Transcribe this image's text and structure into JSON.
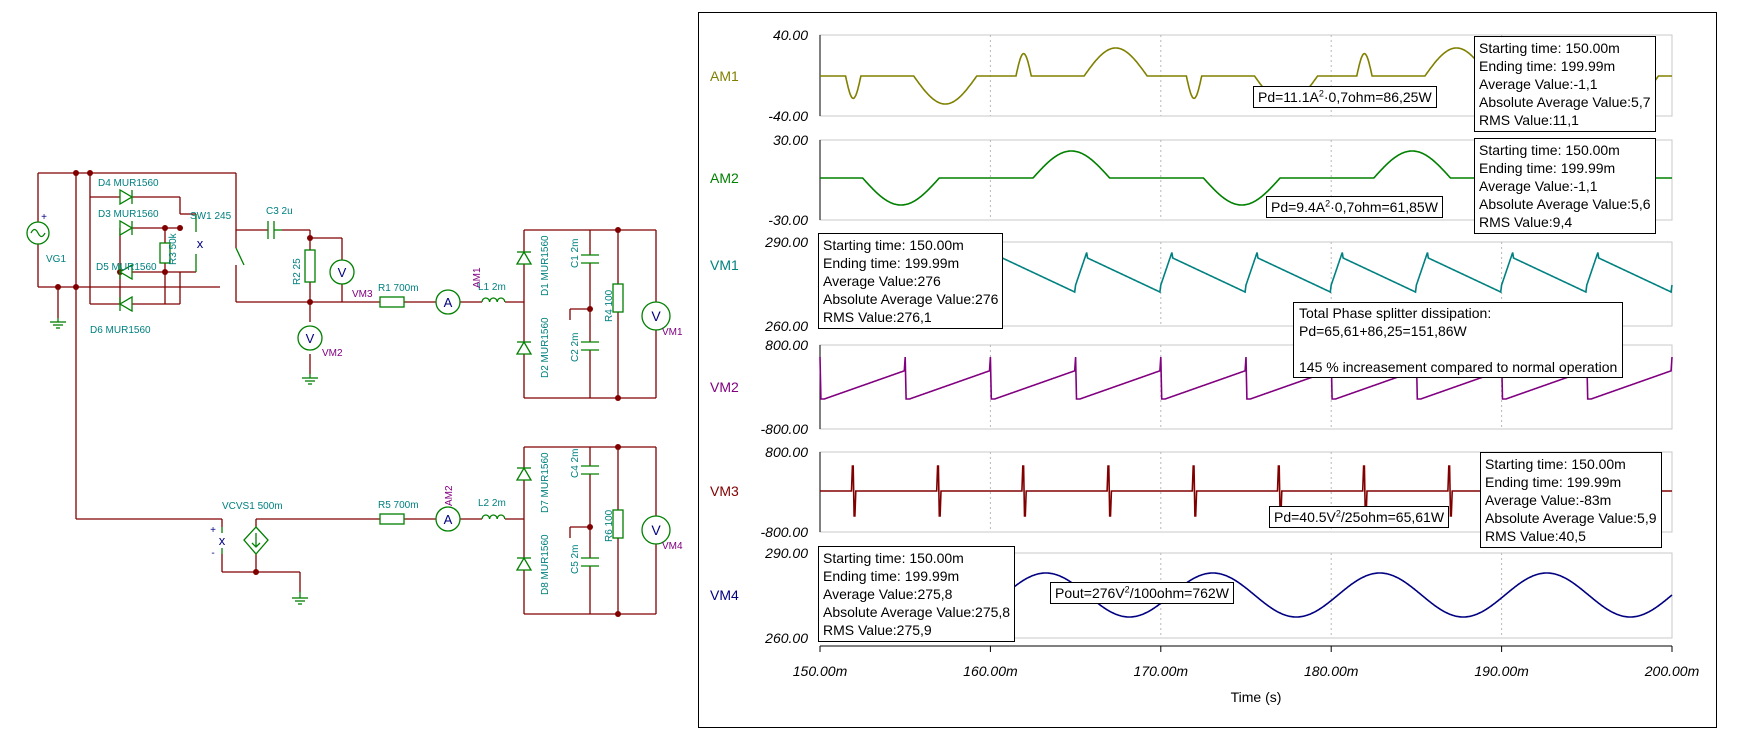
{
  "schematic": {
    "components": {
      "vg1": "VG1",
      "d4": "D4 MUR1560",
      "d3": "D3 MUR1560",
      "d5": "D5 MUR1560",
      "d6": "D6 MUR1560",
      "r3": "R3 50k",
      "sw1": "SW1 245",
      "c3": "C3 2u",
      "r2": "R2 25",
      "vm3": "VM3",
      "r1": "R1 700m",
      "am1": "AM1",
      "l1": "L1 2m",
      "d1": "D1 MUR1560",
      "d2": "D2 MUR1560",
      "c1": "C1 2m",
      "c2": "C2 2m",
      "r4": "R4 100",
      "vm1": "VM1",
      "vm2": "VM2",
      "vcvs1": "VCVS1 500m",
      "r5": "R5 700m",
      "am2": "AM2",
      "l2": "L2 2m",
      "d7": "D7 MUR1560",
      "d8": "D8 MUR1560",
      "c4": "C4 2m",
      "c5": "C5 2m",
      "r6": "R6 100",
      "vm4": "VM4"
    },
    "glyphs": {
      "ammeter": "A",
      "voltmeter": "V",
      "plus": "+",
      "minus": "-",
      "cross": "x"
    }
  },
  "graph": {
    "x_axis_label": "Time (s)",
    "x_ticks": [
      "150.00m",
      "160.00m",
      "170.00m",
      "180.00m",
      "190.00m",
      "200.00m"
    ],
    "panels": [
      {
        "name": "AM1",
        "color": "#808000",
        "ymax": "40.00",
        "ymin": "-40.00"
      },
      {
        "name": "AM2",
        "color": "#008000",
        "ymax": "30.00",
        "ymin": "-30.00"
      },
      {
        "name": "VM1",
        "color": "#008080",
        "ymax": "290.00",
        "ymin": "260.00"
      },
      {
        "name": "VM2",
        "color": "#800080",
        "ymax": "800.00",
        "ymin": "-800.00"
      },
      {
        "name": "VM3",
        "color": "#800000",
        "ymax": "800.00",
        "ymin": "-800.00"
      },
      {
        "name": "VM4",
        "color": "#000080",
        "ymax": "290.00",
        "ymin": "260.00"
      }
    ],
    "stats": {
      "am1": [
        "Starting time: 150.00m",
        "Ending time: 199.99m",
        "Average Value:-1,1",
        "Absolute Average Value:5,7",
        "RMS Value:11,1"
      ],
      "am2": [
        "Starting time: 150.00m",
        "Ending time: 199.99m",
        "Average Value:-1,1",
        "Absolute Average Value:5,6",
        "RMS Value:9,4"
      ],
      "vm1": [
        "Starting time: 150.00m",
        "Ending time: 199.99m",
        "Average Value:276",
        "Absolute Average Value:276",
        "RMS Value:276,1"
      ],
      "vm3": [
        "Starting time: 150.00m",
        "Ending time: 199.99m",
        "Average Value:-83m",
        "Absolute Average Value:5,9",
        "RMS Value:40,5"
      ],
      "vm4": [
        "Starting time: 150.00m",
        "Ending time: 199.99m",
        "Average Value:275,8",
        "Absolute Average Value:275,8",
        "RMS Value:275,9"
      ]
    },
    "annotations": {
      "pd_am1": {
        "a": "Pd=11.1A",
        "sup": "2",
        "b": "·0,7ohm=86,25W"
      },
      "pd_am2": {
        "a": "Pd=9.4A",
        "sup": "2",
        "b": "·0,7ohm=61,85W"
      },
      "pd_vm3": {
        "a": "Pd=40.5V",
        "sup": "2",
        "b": "/25ohm=65,61W"
      },
      "pout_vm4": {
        "a": "Pout=276V",
        "sup": "2",
        "b": "/100ohm=762W"
      },
      "total": [
        "Total Phase splitter dissipation:",
        "Pd=65,61+86,25=151,86W",
        "",
        "145 % increasement compared to normal operation"
      ]
    }
  }
}
